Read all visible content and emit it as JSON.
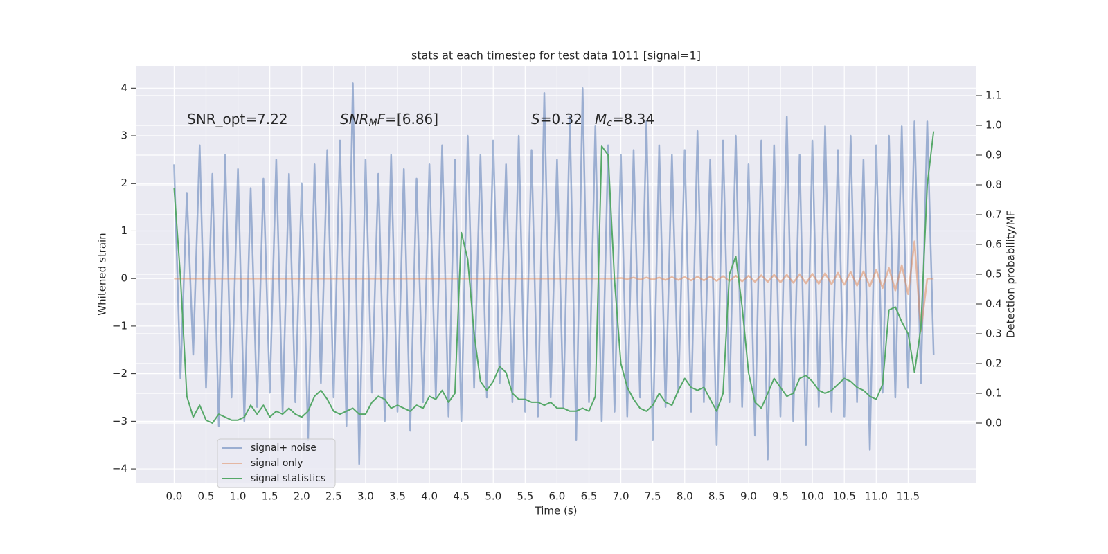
{
  "chart_data": {
    "type": "line",
    "title": "stats at each timestep for test data 1011 [signal=1]",
    "x_label": "Time (s)",
    "y_label": "Whitened strain",
    "y2_label": "Detection probability/MF",
    "grid": true,
    "legend": "lower left",
    "xlim": [
      -0.59,
      12.57
    ],
    "ylim": [
      -4.29,
      4.47
    ],
    "y2lim": [
      -0.2,
      1.2
    ],
    "xticks": [
      {
        "value": 0,
        "label": "0.0"
      },
      0.5,
      {
        "value": 1,
        "label": "1.0"
      },
      1.5,
      {
        "value": 2,
        "label": "2.0"
      },
      2.5,
      {
        "value": 3,
        "label": "3.0"
      },
      3.5,
      {
        "value": 4,
        "label": "4.0"
      },
      4.5,
      {
        "value": 5,
        "label": "5.0"
      },
      5.5,
      {
        "value": 6,
        "label": "6.0"
      },
      6.5,
      {
        "value": 7,
        "label": "7.0"
      },
      7.5,
      {
        "value": 8,
        "label": "8.0"
      },
      8.5,
      {
        "value": 9,
        "label": "9.0"
      },
      9.5,
      {
        "value": 10,
        "label": "10.0"
      },
      10.5,
      {
        "value": 11,
        "label": "11.0"
      },
      11.5
    ],
    "yticks": [
      {
        "value": -4,
        "label": "−4"
      },
      {
        "value": -3,
        "label": "−3"
      },
      {
        "value": -2,
        "label": "−2"
      },
      {
        "value": -1,
        "label": "−1"
      },
      0,
      1,
      2,
      3,
      4
    ],
    "y2ticks": [
      {
        "value": 0,
        "label": "0.0"
      },
      0.1,
      0.2,
      0.3,
      0.4,
      0.5,
      0.6,
      0.7,
      0.8,
      0.9,
      {
        "value": 1,
        "label": "1.0"
      },
      1.1
    ],
    "annotations": [
      {
        "parts": [
          {
            "text": "SNR_opt=7.22"
          }
        ]
      },
      {
        "parts": [
          {
            "text": "SNR",
            "style": "italic"
          },
          {
            "text": "M",
            "style": "italic-sub"
          },
          {
            "text": "F",
            "style": "italic"
          },
          {
            "text": "=[6.86]"
          }
        ]
      },
      {
        "parts": [
          {
            "text": "S",
            "style": "italic"
          },
          {
            "text": "=0.32"
          }
        ]
      },
      {
        "parts": [
          {
            "text": "M",
            "style": "italic"
          },
          {
            "text": "c",
            "style": "italic-sub"
          },
          {
            "text": "=8.34"
          }
        ]
      }
    ],
    "x": [
      0,
      0.1,
      0.2,
      0.3,
      0.4,
      0.5,
      0.6,
      0.7,
      0.8,
      0.9,
      1,
      1.1,
      1.2,
      1.3,
      1.4,
      1.5,
      1.6,
      1.7,
      1.8,
      1.9,
      2,
      2.1,
      2.2,
      2.3,
      2.4,
      2.5,
      2.6,
      2.7,
      2.8,
      2.9,
      3,
      3.1,
      3.2,
      3.3,
      3.4,
      3.5,
      3.6,
      3.7,
      3.8,
      3.9,
      4,
      4.1,
      4.2,
      4.3,
      4.4,
      4.5,
      4.6,
      4.7,
      4.8,
      4.9,
      5,
      5.1,
      5.2,
      5.3,
      5.4,
      5.5,
      5.6,
      5.7,
      5.8,
      5.9,
      6,
      6.1,
      6.2,
      6.3,
      6.4,
      6.5,
      6.6,
      6.7,
      6.8,
      6.9,
      7,
      7.1,
      7.2,
      7.3,
      7.4,
      7.5,
      7.6,
      7.7,
      7.8,
      7.9,
      8,
      8.1,
      8.2,
      8.3,
      8.4,
      8.5,
      8.6,
      8.7,
      8.8,
      8.9,
      9,
      9.1,
      9.2,
      9.3,
      9.4,
      9.5,
      9.6,
      9.7,
      9.8,
      9.9,
      10,
      10.1,
      10.2,
      10.3,
      10.4,
      10.5,
      10.6,
      10.7,
      10.8,
      10.9,
      11,
      11.1,
      11.2,
      11.3,
      11.4,
      11.5,
      11.6,
      11.7,
      11.8,
      11.9
    ],
    "series": [
      {
        "name": "signal+ noise",
        "color": "#4c72b0",
        "opacity": 0.5,
        "values": [
          2.4,
          -2.1,
          1.8,
          -1.6,
          2.8,
          -2.3,
          2.2,
          -3.1,
          2.6,
          -2.5,
          2.3,
          -3.0,
          1.9,
          -2.7,
          2.1,
          -2.4,
          2.5,
          -2.8,
          2.2,
          -2.6,
          2.0,
          -3.4,
          2.4,
          -2.2,
          2.7,
          -2.5,
          2.9,
          -3.1,
          4.1,
          -3.9,
          2.5,
          -2.4,
          2.2,
          -3.0,
          2.6,
          -2.8,
          2.3,
          -3.2,
          2.1,
          -2.6,
          2.4,
          -2.5,
          2.8,
          -2.9,
          2.5,
          -3.0,
          3.0,
          -2.3,
          2.6,
          -2.5,
          2.9,
          -2.2,
          2.4,
          -2.6,
          3.0,
          -2.8,
          2.7,
          -2.9,
          3.9,
          -2.5,
          2.5,
          -2.7,
          3.4,
          -3.4,
          4.0,
          -2.6,
          3.2,
          -3.0,
          2.8,
          -2.8,
          2.6,
          -2.9,
          2.7,
          -2.5,
          3.3,
          -3.4,
          2.8,
          -2.7,
          2.6,
          -2.4,
          2.7,
          -2.8,
          3.1,
          -2.6,
          2.5,
          -3.5,
          2.9,
          -2.6,
          3.0,
          -2.7,
          2.4,
          -3.3,
          2.9,
          -3.8,
          2.8,
          -2.9,
          3.4,
          -3.0,
          2.6,
          -3.5,
          2.9,
          -2.7,
          3.2,
          -2.8,
          2.7,
          -2.9,
          3.0,
          -2.6,
          2.5,
          -3.6,
          2.8,
          -2.4,
          3.0,
          -2.5,
          3.2,
          -2.3,
          3.3,
          -2.2,
          3.3,
          -1.6
        ]
      },
      {
        "name": "signal only",
        "color": "#dd8452",
        "opacity": 0.5,
        "values": [
          0,
          0,
          0,
          0,
          0,
          0,
          0,
          0,
          0,
          0,
          0,
          0,
          0,
          0,
          0,
          0,
          0,
          0,
          0,
          0,
          0,
          0,
          0,
          0,
          0,
          0,
          0,
          0,
          0,
          0,
          0,
          0,
          0,
          0,
          0,
          0,
          0,
          0,
          0,
          0,
          0,
          0,
          0,
          0,
          0,
          0,
          0,
          0,
          0,
          0,
          0,
          0,
          0,
          0,
          0,
          0,
          0,
          0,
          0,
          0,
          0,
          0,
          0,
          0,
          0,
          0,
          0,
          0,
          0,
          0,
          0.01,
          -0.01,
          0.02,
          -0.02,
          0.02,
          -0.02,
          0.02,
          -0.03,
          0.03,
          -0.03,
          0.03,
          -0.04,
          0.04,
          -0.04,
          0.04,
          -0.05,
          0.05,
          -0.05,
          0.06,
          -0.06,
          0.06,
          -0.07,
          0.07,
          -0.07,
          0.08,
          -0.08,
          0.08,
          -0.09,
          0.09,
          -0.1,
          0.1,
          -0.11,
          0.11,
          -0.12,
          0.12,
          -0.13,
          0.14,
          -0.15,
          0.15,
          -0.17,
          0.18,
          -0.2,
          0.22,
          -0.25,
          0.28,
          -0.33,
          0.78,
          -1.1,
          0,
          0
        ]
      },
      {
        "name": "signal statistics",
        "color": "#55a868",
        "opacity": 1,
        "axis": "y2",
        "values": [
          0.79,
          0.49,
          0.09,
          0.02,
          0.06,
          0.01,
          0.0,
          0.03,
          0.02,
          0.01,
          0.01,
          0.02,
          0.06,
          0.03,
          0.06,
          0.02,
          0.04,
          0.03,
          0.05,
          0.03,
          0.02,
          0.04,
          0.09,
          0.11,
          0.08,
          0.04,
          0.03,
          0.04,
          0.05,
          0.03,
          0.03,
          0.07,
          0.09,
          0.08,
          0.05,
          0.06,
          0.05,
          0.04,
          0.06,
          0.05,
          0.09,
          0.08,
          0.11,
          0.07,
          0.1,
          0.64,
          0.55,
          0.3,
          0.14,
          0.11,
          0.14,
          0.19,
          0.17,
          0.1,
          0.08,
          0.08,
          0.07,
          0.07,
          0.06,
          0.07,
          0.05,
          0.05,
          0.04,
          0.04,
          0.05,
          0.04,
          0.09,
          0.93,
          0.9,
          0.48,
          0.2,
          0.12,
          0.08,
          0.05,
          0.04,
          0.06,
          0.1,
          0.07,
          0.06,
          0.11,
          0.15,
          0.12,
          0.11,
          0.12,
          0.08,
          0.04,
          0.1,
          0.5,
          0.56,
          0.39,
          0.17,
          0.07,
          0.05,
          0.1,
          0.15,
          0.12,
          0.09,
          0.1,
          0.15,
          0.16,
          0.14,
          0.11,
          0.1,
          0.11,
          0.13,
          0.15,
          0.14,
          0.12,
          0.11,
          0.09,
          0.08,
          0.13,
          0.38,
          0.39,
          0.34,
          0.3,
          0.17,
          0.32,
          0.8,
          0.98
        ]
      }
    ]
  }
}
